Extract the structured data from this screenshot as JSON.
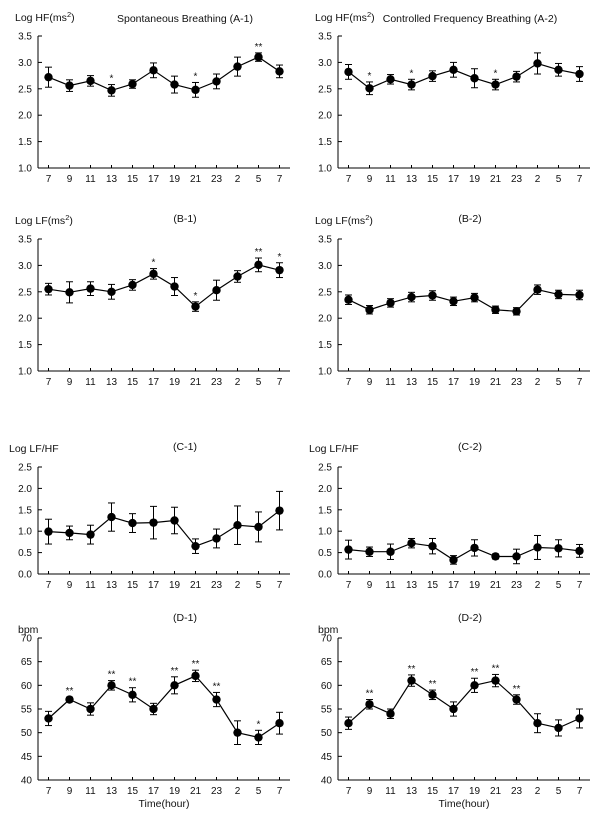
{
  "x_ticks": [
    "7",
    "9",
    "11",
    "13",
    "15",
    "17",
    "19",
    "21",
    "23",
    "2",
    "5",
    "7"
  ],
  "xlabel": "Time(hour)",
  "chart_data": [
    {
      "id": "A-1",
      "type": "line",
      "title": "Spontaneous Breathing (A-1)",
      "ylabel_main": "Log HF(ms",
      "ylabel_sup": "2",
      "ylabel_tail": ")",
      "ylim": [
        1.0,
        3.5
      ],
      "yticks": [
        "1.0",
        "1.5",
        "2.0",
        "2.5",
        "3.0",
        "3.5"
      ],
      "categories": [
        "7",
        "9",
        "11",
        "13",
        "15",
        "17",
        "19",
        "21",
        "23",
        "2",
        "5",
        "7"
      ],
      "values": [
        2.72,
        2.56,
        2.65,
        2.47,
        2.59,
        2.85,
        2.58,
        2.48,
        2.64,
        2.92,
        3.1,
        2.83
      ],
      "errors": [
        0.19,
        0.11,
        0.1,
        0.11,
        0.08,
        0.14,
        0.16,
        0.14,
        0.14,
        0.18,
        0.08,
        0.12
      ],
      "significance": [
        "",
        "",
        "",
        "*",
        "",
        "",
        "",
        "*",
        "",
        "",
        "**",
        ""
      ]
    },
    {
      "id": "A-2",
      "type": "line",
      "title": "Controlled Frequency Breathing (A-2)",
      "ylabel_main": "Log HF(ms",
      "ylabel_sup": "2",
      "ylabel_tail": ")",
      "ylim": [
        1.0,
        3.5
      ],
      "yticks": [
        "1.0",
        "1.5",
        "2.0",
        "2.5",
        "3.0",
        "3.5"
      ],
      "categories": [
        "7",
        "9",
        "11",
        "13",
        "15",
        "17",
        "19",
        "21",
        "23",
        "2",
        "5",
        "7"
      ],
      "values": [
        2.82,
        2.51,
        2.68,
        2.58,
        2.74,
        2.86,
        2.7,
        2.58,
        2.73,
        2.98,
        2.86,
        2.78
      ],
      "errors": [
        0.14,
        0.12,
        0.09,
        0.1,
        0.1,
        0.14,
        0.18,
        0.1,
        0.1,
        0.2,
        0.12,
        0.14
      ],
      "significance": [
        "",
        "*",
        "",
        "*",
        "",
        "",
        "",
        "*",
        "",
        "",
        "",
        ""
      ]
    },
    {
      "id": "B-1",
      "type": "line",
      "title": "(B-1)",
      "ylabel_main": "Log LF(ms",
      "ylabel_sup": "2",
      "ylabel_tail": ")",
      "ylim": [
        1.0,
        3.5
      ],
      "yticks": [
        "1.0",
        "1.5",
        "2.0",
        "2.5",
        "3.0",
        "3.5"
      ],
      "categories": [
        "7",
        "9",
        "11",
        "13",
        "15",
        "17",
        "19",
        "21",
        "23",
        "2",
        "5",
        "7"
      ],
      "values": [
        2.55,
        2.49,
        2.56,
        2.5,
        2.63,
        2.84,
        2.6,
        2.22,
        2.53,
        2.79,
        3.01,
        2.91
      ],
      "errors": [
        0.11,
        0.2,
        0.13,
        0.14,
        0.1,
        0.1,
        0.17,
        0.09,
        0.19,
        0.11,
        0.13,
        0.14
      ],
      "significance": [
        "",
        "",
        "",
        "",
        "",
        "*",
        "",
        "*",
        "",
        "",
        "**",
        "*"
      ]
    },
    {
      "id": "B-2",
      "type": "line",
      "title": "(B-2)",
      "ylabel_main": "Log LF(ms",
      "ylabel_sup": "2",
      "ylabel_tail": ")",
      "ylim": [
        1.0,
        3.5
      ],
      "yticks": [
        "1.0",
        "1.5",
        "2.0",
        "2.5",
        "3.0",
        "3.5"
      ],
      "categories": [
        "7",
        "9",
        "11",
        "13",
        "15",
        "17",
        "19",
        "21",
        "23",
        "2",
        "5",
        "7"
      ],
      "values": [
        2.35,
        2.16,
        2.29,
        2.4,
        2.43,
        2.32,
        2.39,
        2.16,
        2.13,
        2.54,
        2.45,
        2.44
      ],
      "errors": [
        0.09,
        0.08,
        0.08,
        0.09,
        0.09,
        0.08,
        0.08,
        0.07,
        0.07,
        0.09,
        0.08,
        0.09
      ],
      "significance": [
        "",
        "",
        "",
        "",
        "",
        "",
        "",
        "",
        "",
        "",
        "",
        ""
      ]
    },
    {
      "id": "C-1",
      "type": "line",
      "title": "(C-1)",
      "ylabel_main": "Log LF/HF",
      "ylabel_sup": "",
      "ylabel_tail": "",
      "ylim": [
        0.0,
        2.5
      ],
      "yticks": [
        "0.0",
        "0.5",
        "1.0",
        "1.5",
        "2.0",
        "2.5"
      ],
      "categories": [
        "7",
        "9",
        "11",
        "13",
        "15",
        "17",
        "19",
        "21",
        "23",
        "2",
        "5",
        "7"
      ],
      "values": [
        0.99,
        0.96,
        0.92,
        1.33,
        1.19,
        1.2,
        1.25,
        0.65,
        0.83,
        1.14,
        1.1,
        1.48
      ],
      "errors": [
        0.29,
        0.16,
        0.22,
        0.33,
        0.22,
        0.38,
        0.31,
        0.17,
        0.22,
        0.45,
        0.35,
        0.45
      ],
      "significance": [
        "",
        "",
        "",
        "",
        "",
        "",
        "",
        "",
        "",
        "",
        "",
        ""
      ]
    },
    {
      "id": "C-2",
      "type": "line",
      "title": "(C-2)",
      "ylabel_main": "Log LF/HF",
      "ylabel_sup": "",
      "ylabel_tail": "",
      "ylim": [
        0.0,
        2.5
      ],
      "yticks": [
        "0.0",
        "0.5",
        "1.0",
        "1.5",
        "2.0",
        "2.5"
      ],
      "categories": [
        "7",
        "9",
        "11",
        "13",
        "15",
        "17",
        "19",
        "21",
        "23",
        "2",
        "5",
        "7"
      ],
      "values": [
        0.57,
        0.52,
        0.52,
        0.72,
        0.65,
        0.33,
        0.61,
        0.41,
        0.41,
        0.62,
        0.6,
        0.54
      ],
      "errors": [
        0.22,
        0.11,
        0.18,
        0.11,
        0.18,
        0.1,
        0.19,
        0.06,
        0.17,
        0.28,
        0.2,
        0.15
      ],
      "significance": [
        "",
        "",
        "",
        "",
        "",
        "",
        "",
        "",
        "",
        "",
        "",
        ""
      ]
    },
    {
      "id": "D-1",
      "type": "line",
      "title": "(D-1)",
      "ylabel_main": "bpm",
      "ylabel_sup": "",
      "ylabel_tail": "",
      "ylim": [
        40,
        70
      ],
      "yticks": [
        "40",
        "45",
        "50",
        "55",
        "60",
        "65",
        "70"
      ],
      "categories": [
        "7",
        "9",
        "11",
        "13",
        "15",
        "17",
        "19",
        "21",
        "23",
        "2",
        "5",
        "7"
      ],
      "values": [
        53,
        57,
        55,
        60,
        58,
        55,
        60,
        62,
        57,
        50,
        49,
        52
      ],
      "errors": [
        1.5,
        0.5,
        1.3,
        1.0,
        1.5,
        1.2,
        1.8,
        1.2,
        1.5,
        2.5,
        1.5,
        2.3
      ],
      "significance": [
        "",
        "**",
        "",
        "**",
        "**",
        "",
        "**",
        "**",
        "**",
        "",
        "*",
        ""
      ]
    },
    {
      "id": "D-2",
      "type": "line",
      "title": "(D-2)",
      "ylabel_main": "bpm",
      "ylabel_sup": "",
      "ylabel_tail": "",
      "ylim": [
        40,
        70
      ],
      "yticks": [
        "40",
        "45",
        "50",
        "55",
        "60",
        "65",
        "70"
      ],
      "categories": [
        "7",
        "9",
        "11",
        "13",
        "15",
        "17",
        "19",
        "21",
        "23",
        "2",
        "5",
        "7"
      ],
      "values": [
        52,
        56,
        54,
        61,
        58,
        55,
        60,
        61,
        57,
        52,
        51,
        53
      ],
      "errors": [
        1.3,
        1.0,
        1.0,
        1.2,
        1.0,
        1.5,
        1.5,
        1.3,
        1.0,
        2.0,
        1.7,
        2.0
      ],
      "significance": [
        "",
        "**",
        "",
        "**",
        "**",
        "",
        "**",
        "**",
        "**",
        "",
        "",
        ""
      ]
    }
  ]
}
